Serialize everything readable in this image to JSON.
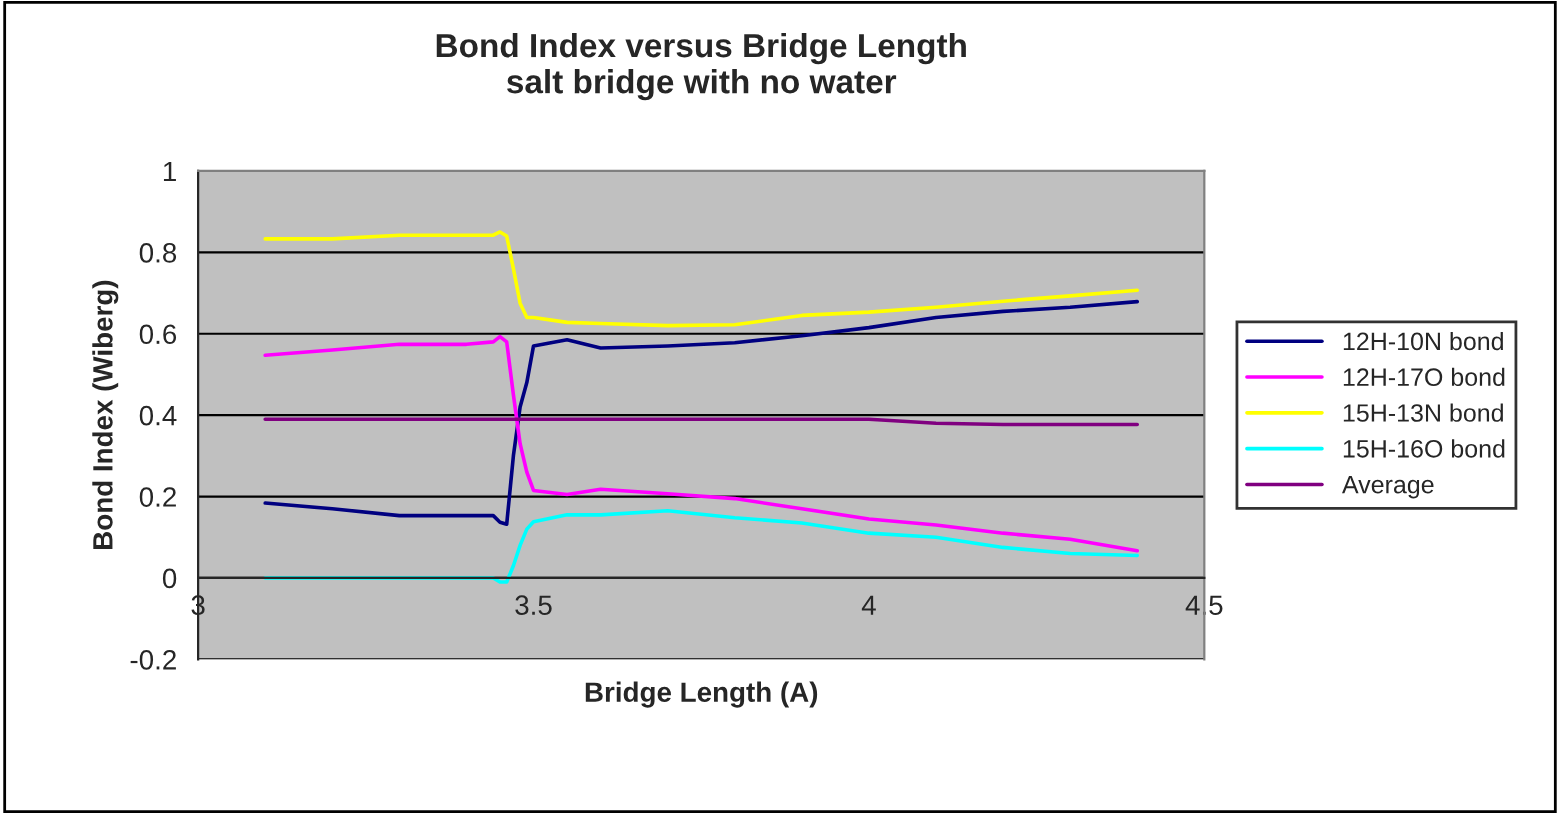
{
  "chart_data": {
    "type": "line",
    "title": "Bond Index versus Bridge Length\nsalt bridge with no water",
    "xlabel": "Bridge Length (A)",
    "ylabel": "Bond Index (Wiberg)",
    "x": [
      3.1,
      3.2,
      3.3,
      3.4,
      3.44,
      3.45,
      3.46,
      3.47,
      3.48,
      3.49,
      3.5,
      3.55,
      3.6,
      3.7,
      3.8,
      3.9,
      4.0,
      4.1,
      4.2,
      4.3,
      4.4
    ],
    "series": [
      {
        "name": "12H-10N bond",
        "color": "#000080",
        "values": [
          0.184,
          0.17,
          0.153,
          0.153,
          0.153,
          0.137,
          0.132,
          0.3,
          0.42,
          0.48,
          0.57,
          0.585,
          0.565,
          0.57,
          0.578,
          0.595,
          0.615,
          0.64,
          0.655,
          0.665,
          0.679
        ]
      },
      {
        "name": "12H-17O bond",
        "color": "#ff00ff",
        "values": [
          0.547,
          0.56,
          0.574,
          0.574,
          0.58,
          0.593,
          0.58,
          0.45,
          0.33,
          0.26,
          0.215,
          0.205,
          0.218,
          0.207,
          0.195,
          0.17,
          0.145,
          0.13,
          0.11,
          0.095,
          0.067
        ]
      },
      {
        "name": "15H-13N bond",
        "color": "#ffff00",
        "values": [
          0.833,
          0.833,
          0.842,
          0.842,
          0.842,
          0.85,
          0.84,
          0.76,
          0.675,
          0.64,
          0.64,
          0.628,
          0.625,
          0.62,
          0.622,
          0.645,
          0.653,
          0.665,
          0.68,
          0.693,
          0.707
        ]
      },
      {
        "name": "15H-16O bond",
        "color": "#00ffff",
        "values": [
          0,
          0,
          0,
          0,
          0,
          -0.01,
          -0.01,
          0.03,
          0.08,
          0.12,
          0.138,
          0.155,
          0.155,
          0.165,
          0.148,
          0.135,
          0.11,
          0.1,
          0.075,
          0.06,
          0.055
        ]
      },
      {
        "name": "Average",
        "color": "#800080",
        "values": [
          0.39,
          0.39,
          0.39,
          0.39,
          0.39,
          0.39,
          0.39,
          0.39,
          0.39,
          0.39,
          0.39,
          0.39,
          0.39,
          0.39,
          0.39,
          0.39,
          0.39,
          0.38,
          0.377,
          0.377,
          0.377
        ]
      }
    ],
    "xlim": [
      3,
      4.5
    ],
    "xticks": [
      3,
      3.5,
      4,
      4.5
    ],
    "ylim": [
      -0.2,
      1
    ],
    "yticks": [
      -0.2,
      0,
      0.2,
      0.4,
      0.6,
      0.8,
      1
    ],
    "grid": "y",
    "legend": "right"
  }
}
